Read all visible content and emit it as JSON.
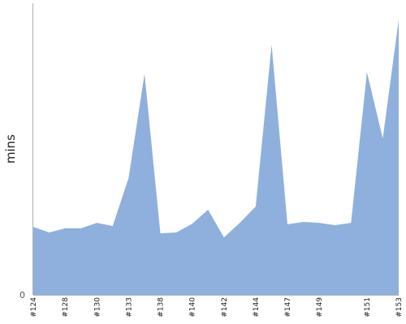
{
  "chart_data": {
    "type": "area",
    "ylabel": "mins",
    "y_tick_labels": [
      "0"
    ],
    "ylim": [
      0,
      100
    ],
    "x_tick_labels": [
      "#124",
      "#128",
      "#130",
      "#133",
      "#138",
      "#140",
      "#142",
      "#144",
      "#147",
      "#149",
      "#151",
      "#153"
    ],
    "points": [
      {
        "x": "#124",
        "y": 23.3
      },
      {
        "x": "#126",
        "y": 21.4
      },
      {
        "x": "#128",
        "y": 22.8
      },
      {
        "x": "#129",
        "y": 22.8
      },
      {
        "x": "#130",
        "y": 24.7
      },
      {
        "x": "#132",
        "y": 23.6
      },
      {
        "x": "#133",
        "y": 40.1
      },
      {
        "x": "#134",
        "y": 75.8
      },
      {
        "x": "#138",
        "y": 21.1
      },
      {
        "x": "#139",
        "y": 21.4
      },
      {
        "x": "#140",
        "y": 24.4
      },
      {
        "x": "#141",
        "y": 29.2
      },
      {
        "x": "#142",
        "y": 19.7
      },
      {
        "x": "#143",
        "y": 24.7
      },
      {
        "x": "#144",
        "y": 30.3
      },
      {
        "x": "#145",
        "y": 85.8
      },
      {
        "x": "#147",
        "y": 24.2
      },
      {
        "x": "#148",
        "y": 25.0
      },
      {
        "x": "#149",
        "y": 24.7
      },
      {
        "x": "#149b",
        "y": 23.9
      },
      {
        "x": "#150",
        "y": 24.7
      },
      {
        "x": "#151",
        "y": 76.4
      },
      {
        "x": "#152",
        "y": 53.6
      },
      {
        "x": "#153",
        "y": 94.4
      }
    ],
    "colors": {
      "area_fill": "#8fb0dc",
      "axis": "#b0b0b0"
    }
  }
}
